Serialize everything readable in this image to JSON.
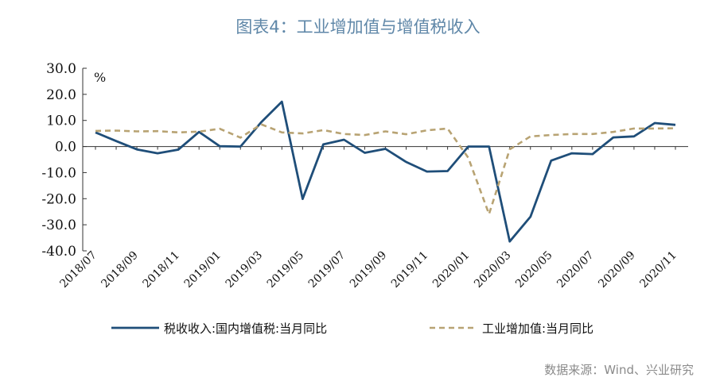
{
  "title": "图表4：工业增加值与增值税收入",
  "source": "数据来源：Wind、兴业研究",
  "chart_data": {
    "type": "line",
    "unit": "%",
    "ylim": [
      -40,
      30
    ],
    "yticks": [
      "30.0",
      "20.0",
      "10.0",
      "0.0",
      "-10.0",
      "-20.0",
      "-30.0",
      "-40.0"
    ],
    "ytick_values": [
      30,
      20,
      10,
      0,
      -10,
      -20,
      -30,
      -40
    ],
    "x": [
      "2018/07",
      "2018/08",
      "2018/09",
      "2018/10",
      "2018/11",
      "2018/12",
      "2019/01",
      "2019/02",
      "2019/03",
      "2019/04",
      "2019/05",
      "2019/06",
      "2019/07",
      "2019/08",
      "2019/09",
      "2019/10",
      "2019/11",
      "2019/12",
      "2020/01",
      "2020/02",
      "2020/03",
      "2020/04",
      "2020/05",
      "2020/06",
      "2020/07",
      "2020/08",
      "2020/09",
      "2020/10",
      "2020/11"
    ],
    "xtick_labels": [
      "2018/07",
      "2018/09",
      "2018/11",
      "2019/01",
      "2019/03",
      "2019/05",
      "2019/07",
      "2019/09",
      "2019/11",
      "2020/01",
      "2020/03",
      "2020/05",
      "2020/07",
      "2020/09",
      "2020/11"
    ],
    "series": [
      {
        "name": "税收收入:国内增值税:当月同比",
        "color": "#1f4e79",
        "style": "solid",
        "values": [
          5.4,
          2.1,
          -1.1,
          -2.6,
          -1.2,
          5.6,
          0.1,
          0.0,
          9.3,
          17.2,
          -20.1,
          0.8,
          2.6,
          -2.4,
          -0.9,
          -5.9,
          -9.6,
          -9.4,
          0.0,
          0.0,
          -36.4,
          -26.9,
          -5.4,
          -2.6,
          -2.9,
          3.5,
          3.9,
          9.0,
          8.3
        ]
      },
      {
        "name": "工业增加值:当月同比",
        "color": "#b8a373",
        "style": "dashed",
        "values": [
          6.0,
          6.1,
          5.8,
          5.9,
          5.4,
          5.7,
          6.8,
          3.4,
          8.5,
          5.4,
          5.0,
          6.3,
          4.8,
          4.4,
          5.8,
          4.7,
          6.2,
          6.9,
          -4.3,
          -25.9,
          -1.1,
          3.9,
          4.4,
          4.8,
          4.8,
          5.6,
          6.9,
          6.9,
          7.0
        ]
      }
    ]
  }
}
